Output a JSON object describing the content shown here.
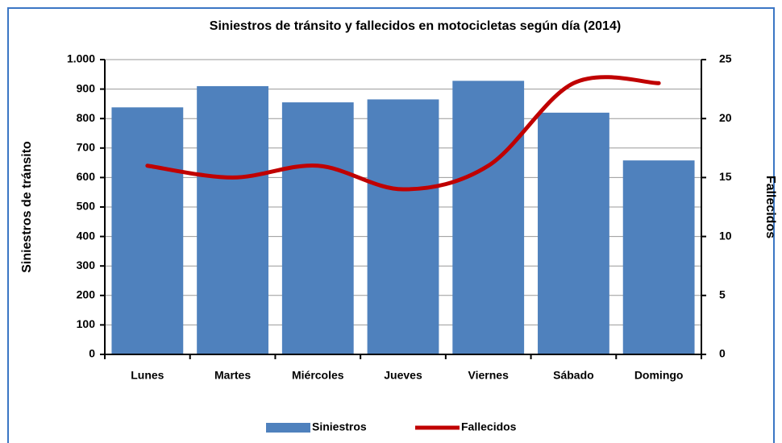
{
  "chart_data": {
    "type": "bar",
    "title": "Siniestros de tránsito y fallecidos en motocicletas según día (2014)",
    "ylabel": "Siniestros de tránsito",
    "y2label": "Fallecidos",
    "categories": [
      "Lunes",
      "Martes",
      "Miércoles",
      "Jueves",
      "Viernes",
      "Sábado",
      "Domingo"
    ],
    "series": [
      {
        "name": "Siniestros",
        "type": "bar",
        "color": "#4f81bd",
        "values": [
          838,
          910,
          855,
          865,
          928,
          820,
          658
        ]
      },
      {
        "name": "Fallecidos",
        "type": "line",
        "axis": "y2",
        "color": "#c00000",
        "values": [
          16,
          15,
          16,
          14,
          16,
          23,
          23
        ]
      }
    ],
    "ylim": [
      0,
      1000
    ],
    "yticks": [
      0,
      100,
      200,
      300,
      400,
      500,
      600,
      700,
      800,
      900,
      {
        "value": 1000,
        "label": "1.000"
      }
    ],
    "y2lim": [
      0,
      25
    ],
    "y2ticks": [
      0,
      5,
      10,
      15,
      20,
      25
    ],
    "grid": true,
    "legend": "bottom"
  }
}
